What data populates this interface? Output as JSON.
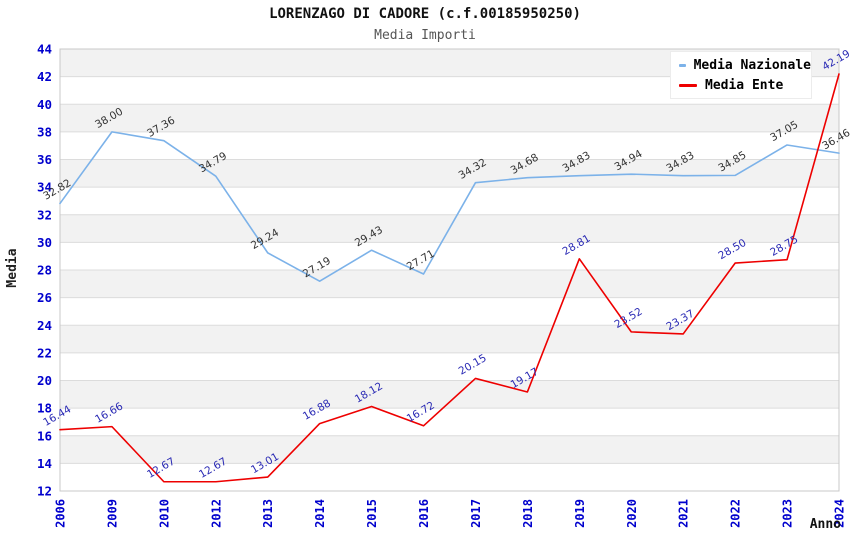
{
  "page": {
    "title": "LORENZAGO DI CADORE (c.f.00185950250)",
    "subtitle": "Media Importi"
  },
  "chart_data": {
    "type": "line",
    "title": "LORENZAGO DI CADORE (c.f.00185950250)",
    "subtitle": "Media Importi",
    "xlabel": "Anno",
    "ylabel": "Media",
    "x": [
      "2006",
      "2009",
      "2010",
      "2012",
      "2013",
      "2014",
      "2015",
      "2016",
      "2017",
      "2018",
      "2019",
      "2020",
      "2021",
      "2022",
      "2023",
      "2024"
    ],
    "series": [
      {
        "name": "Media Nazionale",
        "color": "#7cb2e9",
        "label_color": "#333333",
        "values": [
          32.82,
          38.0,
          37.36,
          34.79,
          29.24,
          27.19,
          29.43,
          27.71,
          34.32,
          34.68,
          34.83,
          34.94,
          34.83,
          34.85,
          37.05,
          36.46
        ]
      },
      {
        "name": "Media Ente",
        "color": "#ee0000",
        "label_color": "#2929b4",
        "values": [
          16.44,
          16.66,
          12.67,
          12.67,
          13.01,
          16.88,
          18.12,
          16.72,
          20.15,
          19.17,
          28.81,
          23.52,
          23.37,
          28.5,
          28.75,
          42.19
        ]
      }
    ],
    "ylim": [
      12,
      44
    ],
    "ytick_step": 2,
    "yticks": [
      44,
      42,
      40,
      38,
      36,
      34,
      32,
      30,
      28,
      26,
      24,
      22,
      20,
      18,
      16,
      14,
      12
    ],
    "grid": "alternating-horizontal-bands",
    "legend_position": "top-right",
    "label_decimals": 2,
    "colors": {
      "tick_label": "#0000cd",
      "band_gray": "#f2f2f2",
      "band_white": "#ffffff",
      "gridline": "#dcdcdc",
      "plot_border": "#c8c8c8",
      "axis_title": "#222222"
    }
  }
}
